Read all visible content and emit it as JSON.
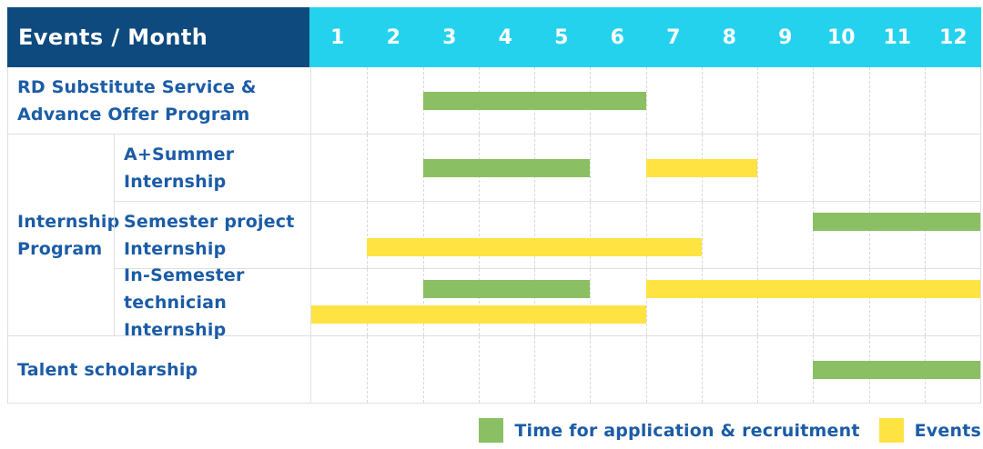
{
  "table": {
    "header": {
      "label": "Events / Month",
      "months": [
        "1",
        "2",
        "3",
        "4",
        "5",
        "6",
        "7",
        "8",
        "9",
        "10",
        "11",
        "12"
      ]
    },
    "group_label": "Internship\nProgram",
    "rows": [
      {
        "label": "RD Substitute Service &\nAdvance Offer Program",
        "bars": [
          {
            "kind": "application",
            "start": 3,
            "end": 6,
            "line": "center"
          }
        ]
      },
      {
        "label": "A+Summer\nInternship",
        "bars": [
          {
            "kind": "application",
            "start": 3,
            "end": 5,
            "line": "center"
          },
          {
            "kind": "event",
            "start": 7,
            "end": 8,
            "line": "center"
          }
        ]
      },
      {
        "label": "Semester project\nInternship",
        "bars": [
          {
            "kind": "application",
            "start": 10,
            "end": 12,
            "line": "upper"
          },
          {
            "kind": "event",
            "start": 2,
            "end": 7,
            "line": "lower"
          }
        ]
      },
      {
        "label": "In-Semester\ntechnician Internship",
        "bars": [
          {
            "kind": "application",
            "start": 3,
            "end": 5,
            "line": "upper"
          },
          {
            "kind": "event",
            "start": 7,
            "end": 12,
            "line": "upper"
          },
          {
            "kind": "event",
            "start": 1,
            "end": 6,
            "line": "lower"
          }
        ]
      },
      {
        "label": "Talent scholarship",
        "bars": [
          {
            "kind": "application",
            "start": 10,
            "end": 12,
            "line": "center"
          }
        ]
      }
    ]
  },
  "legend": {
    "items": [
      {
        "kind": "application",
        "label": "Time for application & recruitment"
      },
      {
        "kind": "event",
        "label": "Events"
      }
    ]
  },
  "colors": {
    "navy": "#0f4a7e",
    "cyan": "#24d2ee",
    "green": "#8ac063",
    "yellow": "#ffe342",
    "blue": "#1b5ca6",
    "grid": "#e0e0e0"
  },
  "chart_data": {
    "type": "gantt",
    "title": "Events / Month",
    "x_unit": "month",
    "x_ticks": [
      1,
      2,
      3,
      4,
      5,
      6,
      7,
      8,
      9,
      10,
      11,
      12
    ],
    "x_range": [
      1,
      12
    ],
    "grid": true,
    "legend_position": "bottom-right",
    "series_kinds": {
      "application": {
        "label": "Time for application & recruitment",
        "color": "#8ac063"
      },
      "event": {
        "label": "Events",
        "color": "#ffe342"
      }
    },
    "tasks": [
      {
        "row": "RD Substitute Service & Advance Offer Program",
        "group": null,
        "bars": [
          {
            "kind": "application",
            "start_month": 3,
            "end_month": 6
          }
        ]
      },
      {
        "row": "A+Summer Internship",
        "group": "Internship Program",
        "bars": [
          {
            "kind": "application",
            "start_month": 3,
            "end_month": 5
          },
          {
            "kind": "event",
            "start_month": 7,
            "end_month": 8
          }
        ]
      },
      {
        "row": "Semester project Internship",
        "group": "Internship Program",
        "bars": [
          {
            "kind": "application",
            "start_month": 10,
            "end_month": 12
          },
          {
            "kind": "event",
            "start_month": 2,
            "end_month": 7
          }
        ]
      },
      {
        "row": "In-Semester technician Internship",
        "group": "Internship Program",
        "bars": [
          {
            "kind": "application",
            "start_month": 3,
            "end_month": 5
          },
          {
            "kind": "event",
            "start_month": 1,
            "end_month": 6
          },
          {
            "kind": "event",
            "start_month": 7,
            "end_month": 12
          }
        ]
      },
      {
        "row": "Talent scholarship",
        "group": null,
        "bars": [
          {
            "kind": "application",
            "start_month": 10,
            "end_month": 12
          }
        ]
      }
    ]
  }
}
